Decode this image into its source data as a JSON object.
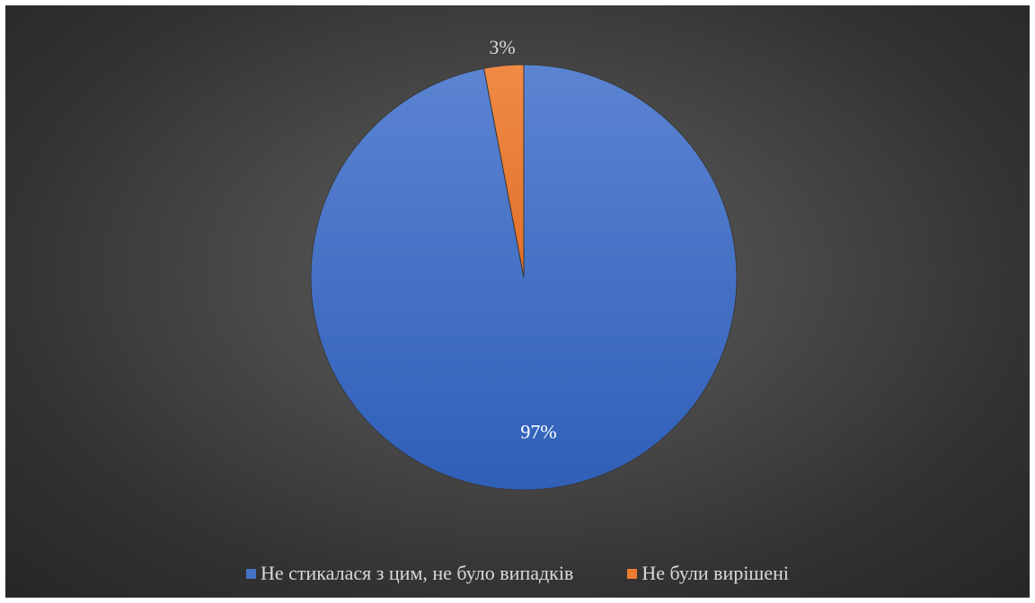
{
  "chart_data": {
    "type": "pie",
    "title": "",
    "categories": [
      "Не стикалася з цим, не було випадків",
      "Не були вирішені"
    ],
    "values": [
      97,
      3
    ],
    "value_labels": [
      "97%",
      "3%"
    ],
    "colors": [
      "#4472C4",
      "#ED7D31"
    ],
    "start_angle_deg": 0,
    "direction": "clockwise",
    "legend": {
      "position": "bottom",
      "entries": [
        "Не стикалася з цим, не було випадків",
        "Не були вирішені"
      ]
    }
  },
  "theme": {
    "background": "#404040",
    "label_color": "#d9d9d9",
    "slice_border": "#3a3a3a"
  }
}
